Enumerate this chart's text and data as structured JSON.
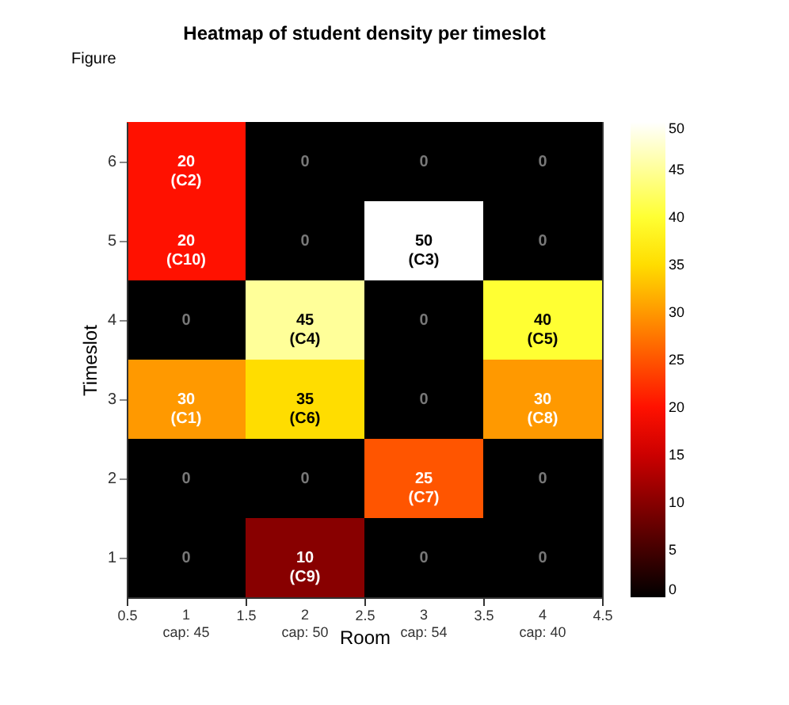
{
  "chart_data": {
    "type": "heatmap",
    "title": "Heatmap of student density per timeslot",
    "xlabel": "Room",
    "ylabel": "Timeslot",
    "annotations": [
      "Figure"
    ],
    "y_categories": [
      "6",
      "5",
      "4",
      "3",
      "2",
      "1"
    ],
    "xlim": [
      0.5,
      4.5
    ],
    "xticks": [
      0.5,
      {
        "value": 1,
        "label": "1\ncap: 45"
      },
      1.5,
      {
        "value": 2,
        "label": "2\ncap: 50"
      },
      2.5,
      {
        "value": 3,
        "label": "3\ncap: 54"
      },
      3.5,
      {
        "value": 4,
        "label": "4\ncap: 40"
      },
      4.5
    ],
    "cells": [
      [
        20,
        0,
        0,
        0
      ],
      [
        20,
        0,
        50,
        0
      ],
      [
        0,
        45,
        0,
        40
      ],
      [
        30,
        35,
        0,
        30
      ],
      [
        0,
        0,
        25,
        0
      ],
      [
        0,
        10,
        0,
        0
      ]
    ],
    "cell_labels": [
      [
        "20\n(C2)",
        "0",
        "0",
        "0"
      ],
      [
        "20\n(C10)",
        "0",
        "50\n(C3)",
        "0"
      ],
      [
        "0",
        "45\n(C4)",
        "0",
        "40\n(C5)"
      ],
      [
        "30\n(C1)",
        "35\n(C6)",
        "0",
        "30\n(C8)"
      ],
      [
        "0",
        "0",
        "25\n(C7)",
        "0"
      ],
      [
        "0",
        "10\n(C9)",
        "0",
        "0"
      ]
    ],
    "clim": [
      0,
      50
    ],
    "cticks": [
      0,
      5,
      10,
      15,
      20,
      25,
      30,
      35,
      40,
      45,
      50
    ],
    "grid": false
  }
}
